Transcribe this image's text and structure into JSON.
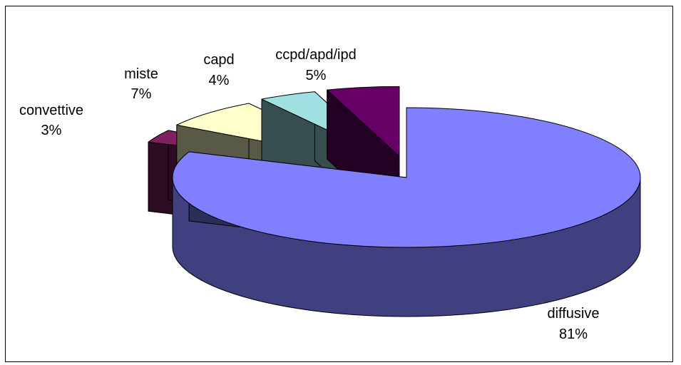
{
  "chart_data": {
    "type": "pie",
    "title": "",
    "three_d": true,
    "exploded": true,
    "slices": [
      {
        "label": "diffusive",
        "value": 81,
        "pct_label": "81%",
        "color": "#8080FF"
      },
      {
        "label": "convettive",
        "value": 3,
        "pct_label": "3%",
        "color": "#802060"
      },
      {
        "label": "miste",
        "value": 7,
        "pct_label": "7%",
        "color": "#FFFFCC"
      },
      {
        "label": "capd",
        "value": 4,
        "pct_label": "4%",
        "color": "#A0E0E0"
      },
      {
        "label": "ccpd/apd/ipd",
        "value": 5,
        "pct_label": "5%",
        "color": "#660066"
      }
    ]
  }
}
